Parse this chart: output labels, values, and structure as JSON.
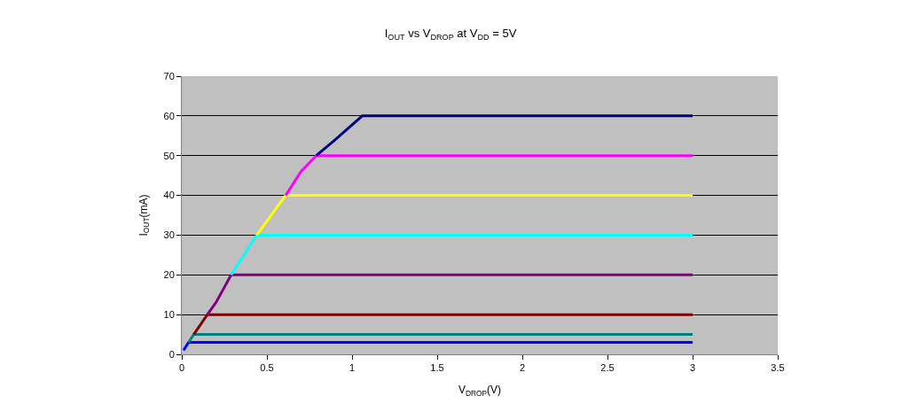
{
  "chart_data": {
    "type": "line",
    "title": "I$_{OUT}$ vs V$_{DROP}$ at V$_{DD}$ = 5V",
    "xlabel": "V$_{DROP}$(V)",
    "ylabel": "I$_{OUT}$(mA)",
    "xlim": [
      0,
      3.5
    ],
    "xticks": [
      0,
      0.5,
      1,
      1.5,
      2,
      2.5,
      3,
      3.5
    ],
    "ylim": [
      0,
      70
    ],
    "yticks": [
      0,
      10,
      20,
      30,
      40,
      50,
      60,
      70
    ],
    "grid": "y",
    "marker": "none",
    "line_style": "solid",
    "series": [
      {
        "color": "#0000ff",
        "x": [
          0.01,
          0.04,
          3
        ],
        "values": [
          1,
          3,
          3
        ]
      },
      {
        "color": "#008080",
        "x": [
          0.04,
          0.07,
          3
        ],
        "values": [
          3,
          5,
          5
        ]
      },
      {
        "color": "#800000",
        "x": [
          0.07,
          0.15,
          3
        ],
        "values": [
          5,
          10,
          10
        ]
      },
      {
        "color": "#800080",
        "x": [
          0.15,
          0.2,
          0.29,
          3
        ],
        "values": [
          10,
          13,
          20,
          20
        ]
      },
      {
        "color": "#00ffff",
        "x": [
          0.29,
          0.44,
          3
        ],
        "values": [
          20,
          30,
          30
        ]
      },
      {
        "color": "#ffff00",
        "x": [
          0.44,
          0.61,
          3
        ],
        "values": [
          30,
          40,
          40
        ]
      },
      {
        "color": "#ff00ff",
        "x": [
          0.61,
          0.7,
          0.79,
          3
        ],
        "values": [
          40,
          46,
          50,
          50
        ]
      },
      {
        "color": "#000080",
        "x": [
          0.79,
          0.9,
          1.06,
          3
        ],
        "values": [
          50,
          54,
          60,
          60
        ]
      }
    ]
  }
}
